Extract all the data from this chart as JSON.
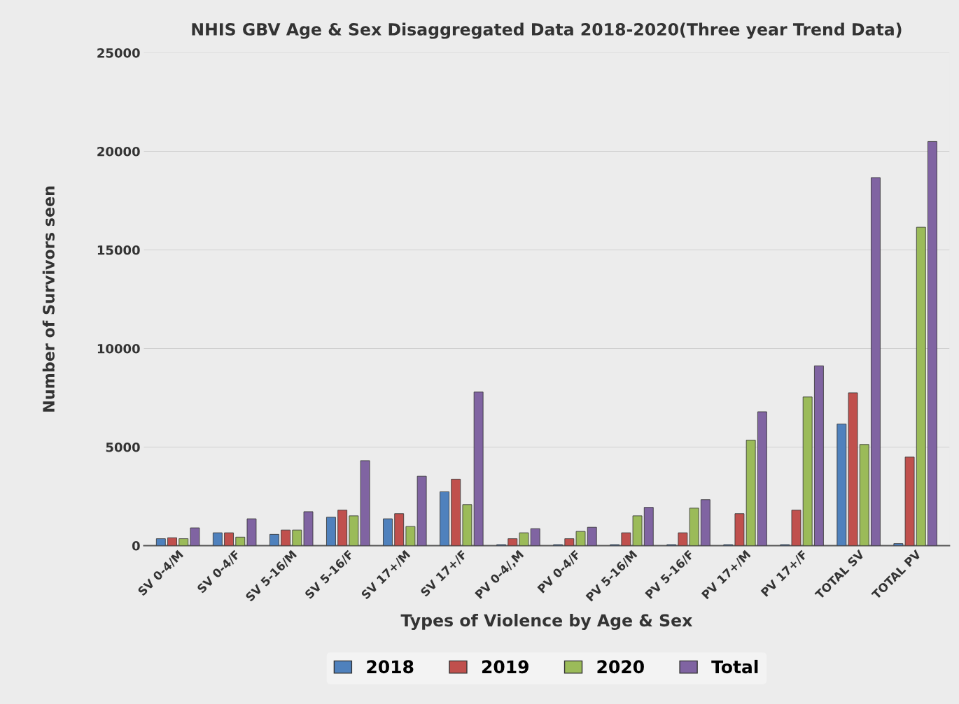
{
  "chart_data": {
    "type": "bar",
    "title": "NHIS GBV Age & Sex Disaggregated Data 2018-2020(Three year Trend Data)",
    "xlabel": "Types of Violence by Age & Sex",
    "ylabel": "Number of Survivors seen",
    "categories": [
      "SV 0-4/M",
      "SV 0-4/F",
      "SV 5-16/M",
      "SV 5-16/F",
      "SV 17+/M",
      "SV 17+/F",
      "PV 0-4/,M",
      "PV 0-4/F",
      "PV 5-16/M",
      "PV 5-16/F",
      "PV 17+/M",
      "PV 17+/F",
      "TOTAL SV",
      "TOTAL PV"
    ],
    "series": [
      {
        "name": "2018",
        "color": "#4f81bd",
        "values": [
          350,
          650,
          570,
          1440,
          1360,
          2730,
          50,
          50,
          50,
          50,
          50,
          50,
          6170,
          100
        ]
      },
      {
        "name": "2019",
        "color": "#c0504d",
        "values": [
          400,
          650,
          790,
          1800,
          1620,
          3370,
          350,
          350,
          650,
          650,
          1620,
          1800,
          7750,
          4490
        ]
      },
      {
        "name": "2020",
        "color": "#9bbb59",
        "values": [
          350,
          430,
          790,
          1510,
          970,
          2080,
          650,
          720,
          1510,
          1900,
          5350,
          7540,
          5130,
          16150
        ]
      },
      {
        "name": "Total",
        "color": "#8064a2",
        "values": [
          900,
          1360,
          1720,
          4310,
          3520,
          7790,
          860,
          930,
          1940,
          2330,
          6790,
          9120,
          18670,
          20500
        ]
      }
    ],
    "ylim": [
      0,
      25000
    ],
    "yticks": [
      0,
      5000,
      10000,
      15000,
      20000,
      25000
    ],
    "grid": "y",
    "legend": "bottom"
  }
}
